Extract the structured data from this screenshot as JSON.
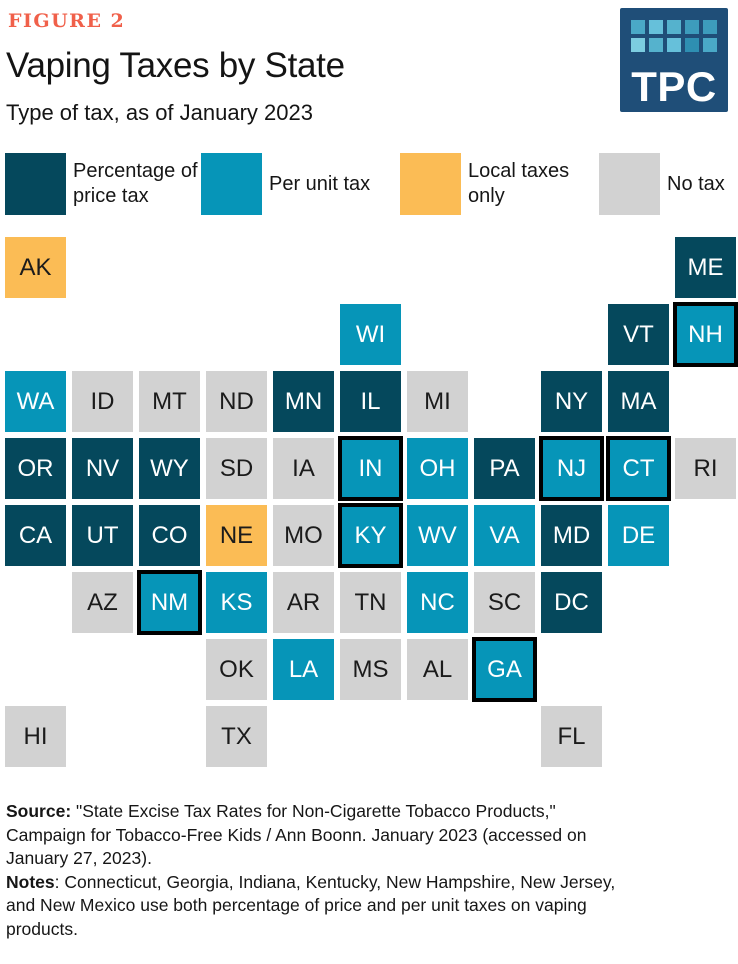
{
  "figure_label": "FIGURE 2",
  "title": "Vaping Taxes by State",
  "subtitle": "Type of tax, as of January 2023",
  "logo": {
    "text": "TPC",
    "background": "#1f4e78",
    "square_colors": [
      "#4aa9c7",
      "#66c0da",
      "#55b2cd",
      "#3d9cbc",
      "#3d9cbc",
      "#7ccde0",
      "#55b2cd",
      "#66c0da",
      "#2e8fb2",
      "#4aa9c7"
    ]
  },
  "colors": {
    "percentage": "#05485c",
    "per_unit": "#0695b8",
    "local_only": "#fbbc55",
    "no_tax": "#d2d2d2",
    "dual_outline": "#000000",
    "accent": "#f0604a",
    "text_dark": "#161616",
    "text_light": "#ffffff"
  },
  "tile_text_colors": {
    "percentage": "#ffffff",
    "per_unit": "#ffffff",
    "local_only": "#1b1b1b",
    "no_tax": "#1b1b1b"
  },
  "chart_data": {
    "type": "tile-grid-map",
    "title": "Vaping Taxes by State",
    "subtitle": "Type of tax, as of January 2023",
    "legend": [
      {
        "key": "percentage",
        "label": "Percentage of\nprice tax",
        "color": "#05485c"
      },
      {
        "key": "per_unit",
        "label": "Per unit tax",
        "color": "#0695b8"
      },
      {
        "key": "local_only",
        "label": "Local taxes\nonly",
        "color": "#fbbc55"
      },
      {
        "key": "no_tax",
        "label": "No tax",
        "color": "#d2d2d2"
      }
    ],
    "dual_tax_meaning": "Black outline marks states using both percentage of price and per unit taxes",
    "states": [
      {
        "abbr": "AK",
        "row": 1,
        "col": 1,
        "tax": "local_only",
        "dual": false
      },
      {
        "abbr": "ME",
        "row": 1,
        "col": 11,
        "tax": "percentage",
        "dual": false
      },
      {
        "abbr": "WI",
        "row": 2,
        "col": 6,
        "tax": "per_unit",
        "dual": false
      },
      {
        "abbr": "VT",
        "row": 2,
        "col": 10,
        "tax": "percentage",
        "dual": false
      },
      {
        "abbr": "NH",
        "row": 2,
        "col": 11,
        "tax": "per_unit",
        "dual": true
      },
      {
        "abbr": "WA",
        "row": 3,
        "col": 1,
        "tax": "per_unit",
        "dual": false
      },
      {
        "abbr": "ID",
        "row": 3,
        "col": 2,
        "tax": "no_tax",
        "dual": false
      },
      {
        "abbr": "MT",
        "row": 3,
        "col": 3,
        "tax": "no_tax",
        "dual": false
      },
      {
        "abbr": "ND",
        "row": 3,
        "col": 4,
        "tax": "no_tax",
        "dual": false
      },
      {
        "abbr": "MN",
        "row": 3,
        "col": 5,
        "tax": "percentage",
        "dual": false
      },
      {
        "abbr": "IL",
        "row": 3,
        "col": 6,
        "tax": "percentage",
        "dual": false
      },
      {
        "abbr": "MI",
        "row": 3,
        "col": 7,
        "tax": "no_tax",
        "dual": false
      },
      {
        "abbr": "NY",
        "row": 3,
        "col": 9,
        "tax": "percentage",
        "dual": false
      },
      {
        "abbr": "MA",
        "row": 3,
        "col": 10,
        "tax": "percentage",
        "dual": false
      },
      {
        "abbr": "OR",
        "row": 4,
        "col": 1,
        "tax": "percentage",
        "dual": false
      },
      {
        "abbr": "NV",
        "row": 4,
        "col": 2,
        "tax": "percentage",
        "dual": false
      },
      {
        "abbr": "WY",
        "row": 4,
        "col": 3,
        "tax": "percentage",
        "dual": false
      },
      {
        "abbr": "SD",
        "row": 4,
        "col": 4,
        "tax": "no_tax",
        "dual": false
      },
      {
        "abbr": "IA",
        "row": 4,
        "col": 5,
        "tax": "no_tax",
        "dual": false
      },
      {
        "abbr": "IN",
        "row": 4,
        "col": 6,
        "tax": "per_unit",
        "dual": true
      },
      {
        "abbr": "OH",
        "row": 4,
        "col": 7,
        "tax": "per_unit",
        "dual": false
      },
      {
        "abbr": "PA",
        "row": 4,
        "col": 8,
        "tax": "percentage",
        "dual": false
      },
      {
        "abbr": "NJ",
        "row": 4,
        "col": 9,
        "tax": "per_unit",
        "dual": true
      },
      {
        "abbr": "CT",
        "row": 4,
        "col": 10,
        "tax": "per_unit",
        "dual": true
      },
      {
        "abbr": "RI",
        "row": 4,
        "col": 11,
        "tax": "no_tax",
        "dual": false
      },
      {
        "abbr": "CA",
        "row": 5,
        "col": 1,
        "tax": "percentage",
        "dual": false
      },
      {
        "abbr": "UT",
        "row": 5,
        "col": 2,
        "tax": "percentage",
        "dual": false
      },
      {
        "abbr": "CO",
        "row": 5,
        "col": 3,
        "tax": "percentage",
        "dual": false
      },
      {
        "abbr": "NE",
        "row": 5,
        "col": 4,
        "tax": "local_only",
        "dual": false
      },
      {
        "abbr": "MO",
        "row": 5,
        "col": 5,
        "tax": "no_tax",
        "dual": false
      },
      {
        "abbr": "KY",
        "row": 5,
        "col": 6,
        "tax": "per_unit",
        "dual": true
      },
      {
        "abbr": "WV",
        "row": 5,
        "col": 7,
        "tax": "per_unit",
        "dual": false
      },
      {
        "abbr": "VA",
        "row": 5,
        "col": 8,
        "tax": "per_unit",
        "dual": false
      },
      {
        "abbr": "MD",
        "row": 5,
        "col": 9,
        "tax": "percentage",
        "dual": false
      },
      {
        "abbr": "DE",
        "row": 5,
        "col": 10,
        "tax": "per_unit",
        "dual": false
      },
      {
        "abbr": "AZ",
        "row": 6,
        "col": 2,
        "tax": "no_tax",
        "dual": false
      },
      {
        "abbr": "NM",
        "row": 6,
        "col": 3,
        "tax": "per_unit",
        "dual": true
      },
      {
        "abbr": "KS",
        "row": 6,
        "col": 4,
        "tax": "per_unit",
        "dual": false
      },
      {
        "abbr": "AR",
        "row": 6,
        "col": 5,
        "tax": "no_tax",
        "dual": false
      },
      {
        "abbr": "TN",
        "row": 6,
        "col": 6,
        "tax": "no_tax",
        "dual": false
      },
      {
        "abbr": "NC",
        "row": 6,
        "col": 7,
        "tax": "per_unit",
        "dual": false
      },
      {
        "abbr": "SC",
        "row": 6,
        "col": 8,
        "tax": "no_tax",
        "dual": false
      },
      {
        "abbr": "DC",
        "row": 6,
        "col": 9,
        "tax": "percentage",
        "dual": false
      },
      {
        "abbr": "OK",
        "row": 7,
        "col": 4,
        "tax": "no_tax",
        "dual": false
      },
      {
        "abbr": "LA",
        "row": 7,
        "col": 5,
        "tax": "per_unit",
        "dual": false
      },
      {
        "abbr": "MS",
        "row": 7,
        "col": 6,
        "tax": "no_tax",
        "dual": false
      },
      {
        "abbr": "AL",
        "row": 7,
        "col": 7,
        "tax": "no_tax",
        "dual": false
      },
      {
        "abbr": "GA",
        "row": 7,
        "col": 8,
        "tax": "per_unit",
        "dual": true
      },
      {
        "abbr": "HI",
        "row": 8,
        "col": 1,
        "tax": "no_tax",
        "dual": false
      },
      {
        "abbr": "TX",
        "row": 8,
        "col": 4,
        "tax": "no_tax",
        "dual": false
      },
      {
        "abbr": "FL",
        "row": 8,
        "col": 9,
        "tax": "no_tax",
        "dual": false
      }
    ]
  },
  "footer": {
    "source_label": "Source:",
    "source_text": " \"State Excise Tax Rates for Non-Cigarette Tobacco Products,\"\nCampaign for Tobacco-Free Kids / Ann Boonn. January 2023 (accessed on\nJanuary 27, 2023).",
    "notes_label": "Notes",
    "notes_text": ": Connecticut, Georgia, Indiana, Kentucky, New Hampshire, New Jersey,\nand New Mexico use both percentage of price and per unit taxes on vaping\nproducts."
  }
}
